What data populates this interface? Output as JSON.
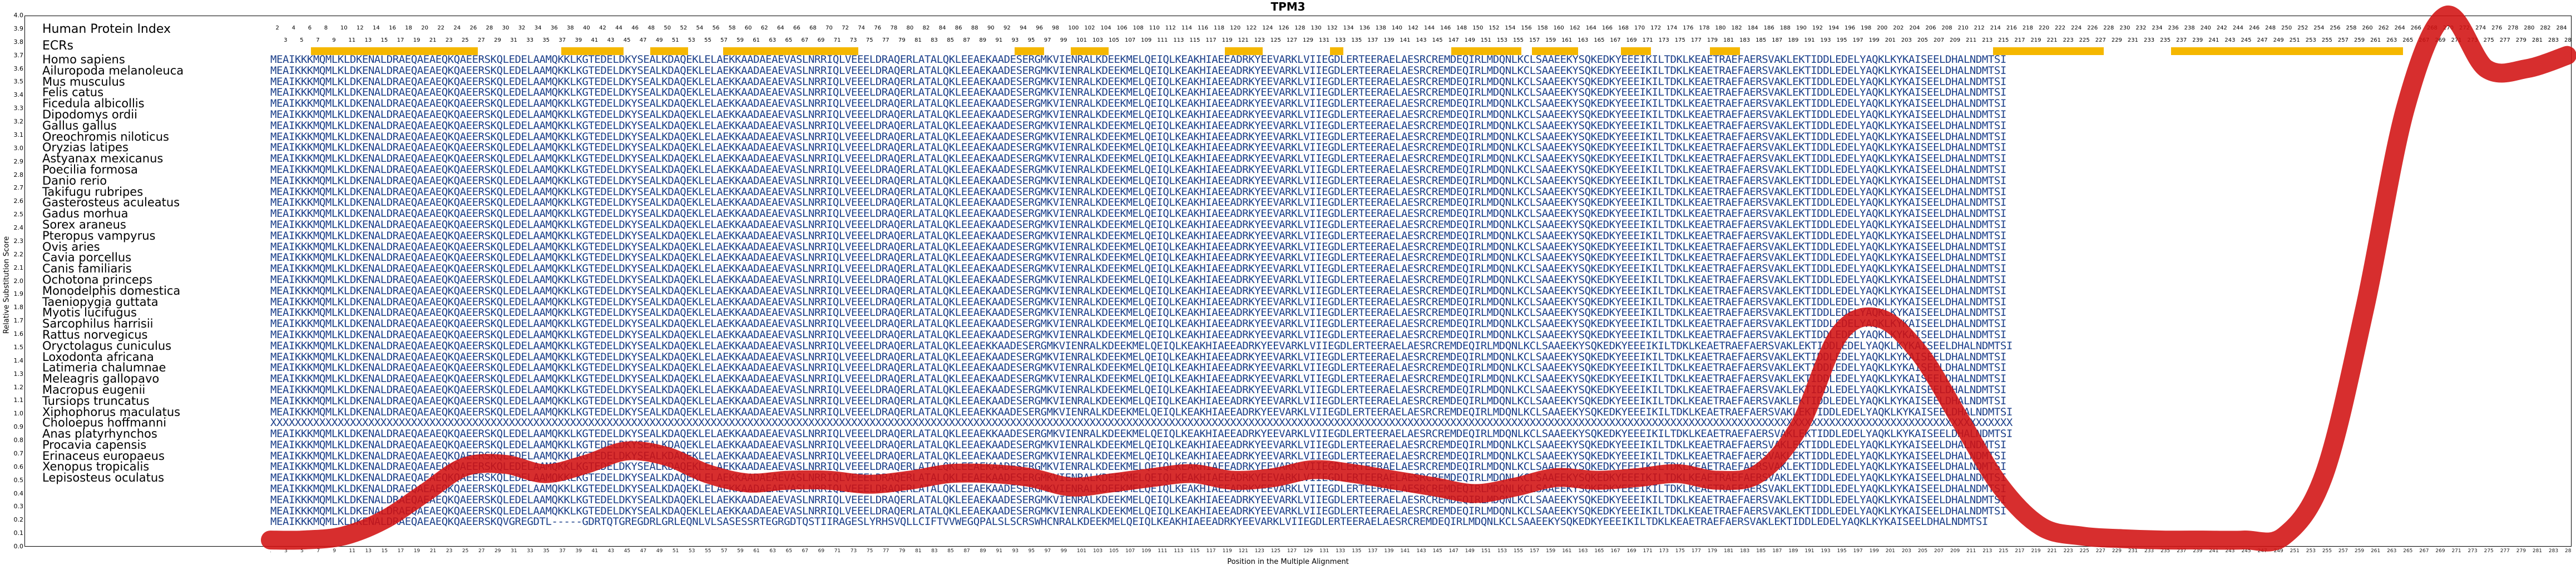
{
  "chart_data": {
    "type": "line",
    "title": "TPM3",
    "xlabel": "Position in the Multiple Alignment",
    "ylabel": "Relative Substitution Score",
    "ylim": [
      0,
      4.0
    ],
    "yticks": [
      "4.0",
      "3.9",
      "3.8",
      "3.7",
      "3.6",
      "3.5",
      "3.4",
      "3.3",
      "3.2",
      "3.1",
      "3.0",
      "2.9",
      "2.8",
      "2.7",
      "2.6",
      "2.5",
      "2.4",
      "2.3",
      "2.2",
      "2.1",
      "2.0",
      "1.9",
      "1.8",
      "1.7",
      "1.6",
      "1.5",
      "1.4",
      "1.3",
      "1.2",
      "1.1",
      "1.0",
      "0.9",
      "0.8",
      "0.7",
      "0.6",
      "0.5",
      "0.4",
      "0.3",
      "0.2",
      "0.1",
      "0.0"
    ],
    "xlim": [
      1,
      285
    ],
    "x_top_index_odd_start": 3,
    "x_top_index_even_start": 2,
    "header_labels": [
      "Human Protein Index",
      "ECRs"
    ],
    "ecr_ranges": [
      [
        6,
        26
      ],
      [
        37,
        44
      ],
      [
        48,
        52
      ],
      [
        57,
        73
      ],
      [
        93,
        96
      ],
      [
        100,
        104
      ],
      [
        119,
        123
      ],
      [
        132,
        133
      ],
      [
        147,
        155
      ],
      [
        157,
        162
      ],
      [
        168,
        171
      ],
      [
        179,
        182
      ],
      [
        214,
        227
      ],
      [
        236,
        264
      ]
    ],
    "species": [
      "Homo sapiens",
      "Ailuropoda melanoleuca",
      "Mus musculus",
      "Felis catus",
      "Ficedula albicollis",
      "Dipodomys ordii",
      "Gallus gallus",
      "Oreochromis niloticus",
      "Oryzias latipes",
      "Astyanax mexicanus",
      "Poecilia formosa",
      "Danio rerio",
      "Takifugu rubripes",
      "Gasterosteus aculeatus",
      "Gadus morhua",
      "Sorex araneus",
      "Pteropus vampyrus",
      "Ovis aries",
      "Cavia porcellus",
      "Canis familiaris",
      "Ochotona princeps",
      "Monodelphis domestica",
      "Taeniopygia guttata",
      "Myotis lucifugus",
      "Sarcophilus harrisii",
      "Rattus norvegicus",
      "Oryctolagus cuniculus",
      "Loxodonta africana",
      "Latimeria chalumnae",
      "Meleagris gallopavo",
      "Macropus eugenii",
      "Tursiops truncatus",
      "Xiphophorus maculatus",
      "Choloepus hoffmanni",
      "Anas platyrhynchos",
      "Procavia capensis",
      "Erinaceus europaeus",
      "Xenopus tropicalis",
      "Lepisosteus oculatus"
    ],
    "sequences": [
      "MEAIKKKMQMLKLDKENALDRAEQAEAEQKQAEERSKQLEDELAAMQKKLKGTEDELDKYSEALKDAQEKLELAEKKAADAEAEVASLNRRIQLVEEELDRAQERLATALQKLEEAEKAADESERGMKVIENRALKDEEKMELQEIQLKEAKHIAEEADRKYEEVARKLVIIEGDLERTEERAELAESRCREMDEQIRLMDQNLKCLSAAEEKYSQKEDKYEEEIKILTDKLKEAETRAEFAERSVAKLEKTIDDLEDELYAQKLKYKAISEELDHALNDMTSI",
      "MEAIKKKMQMLKLDKENALDRAEQAEAEQKQAEERSKQLEDELAAMQKKLKGTEDELDKYSEALKDAQEKLELAEKKAADAEAEVASLNRRIQLVEEELDRAQERLATALQKLEEAEKAADESERGMKVIENRALKDEEKMELQEIQLKEAKHIAEEADRKYEEVARKLVIIEGDLERTEERAELAESRCREMDEQIRLMDQNLKCLSAAEEKYSQKEDKYEEEIKILTDKLKEAETRAEFAERSVAKLEKTIDDLEDELYAQKLKYKAISEELDHALNDMTSI",
      "MEAIKKKMQMLKLDKENALDRAEQAEAEQKQAEERSKQLEDELAAMQKKLKGTEDELDKYSEALKDAQEKLELAEKKAADAEAEVASLNRRIQLVEEELDRAQERLATALQKLEEAEKAADESERGMKVIENRALKDEEKMELQEIQLKEAKHIAEEADRKYEEVARKLVIIEGDLERTEERAELAESRCREMDEQIRLMDQNLKCLSAAEEKYSQKEDKYEEEIKILTDKLKEAETRAEFAERSVAKLEKTIDDLEDELYAQKLKYKAISEELDHALNDMTSI",
      "MEAIKKKMQMLKLDKENALDRAEQAEAEQKQAEERSKQLEDELAAMQKKLKGTEDELDKYSEALKDAQEKLELAEKKAADAEAEVASLNRRIQLVEEELDRAQERLATALQKLEEAEKAADESERGMKVIENRALKDEEKMELQEIQLKEAKHIAEEADRKYEEVARKLVIIEGDLERTEERAELAESRCREMDEQIRLMDQNLKCLSAAEEKYSQKEDKYEEEIKILTDKLKEAETRAEFAERSVAKLEKTIDDLEDELYAQKLKYKAISEELDHALNDMTSI",
      "MEAIKKKMQMLKLDKENALDRAEQAEAEQKQAEERSKQLEDELAAMQKKLKGTEDELDKYSEALKDAQEKLELAEKKAADAEAEVASLNRRIQLVEEELDRAQERLATALQKLEEAEKAADESERGMKVIENRALKDEEKMELQEIQLKEAKHIAEEADRKYEEVARKLVIIEGDLERTEERAELAESRCREMDEQIRLMDQNLKCLSAAEEKYSQKEDKYEEEIKILTDKLKEAETRAEFAERSVAKLEKTIDDLEDELYAQKLKYKAISEELDHALNDMTSI",
      "MEAIKKKMQMLKLDKENALDRAEQAEAEQKQAEERSKQLEDELAAMQKKLKGTEDELDKYSEALKDAQEKLELAEKKAADAEAEVASLNRRIQLVEEELDRAQERLATALQKLEEAEKAADESERGMKVIENRALKDEEKMELQEIQLKEAKHIAEEADRKYEEVARKLVIIEGDLERTEERAELAESRCREMDEQIRLMDQNLKCLSAAEEKYSQKEDKYEEEIKILTDKLKEAETRAEFAERSVAKLEKTIDDLEDELYAQKLKYKAISEELDHALNDMTSI",
      "MEAIKKKMQMLKLDKENALDRAEQAEAEQKQAEERSKQLEDELAAMQKKLKGTEDELDKYSEALKDAQEKLELAEKKAADAEAEVASLNRRIQLVEEELDRAQERLATALQKLEEAEKAADESERGMKVIENRALKDEEKMELQEIQLKEAKHIAEEADRKYEEVARKLVIIEGDLERTEERAELAESRCREMDEQIRLMDQNLKCLSAAEEKYSQKEDKYEEEIKILTDKLKEAETRAEFAERSVAKLEKTIDDLEDELYAQKLKYKAISEELDHALNDMTSI",
      "MEAIKKKMQMLKLDKENALDRAEQAEAEQKQAEERSKQLEDELAAMQKKLKGTEDELDKYSEALKDAQEKLELAEKKAADAEAEVASLNRRIQLVEEELDRAQERLATALQKLEEAEKAADESERGMKVIENRALKDEEKMELQEIQLKEAKHIAEEADRKYEEVARKLVIIEGDLERTEERAELAESRCREMDEQIRLMDQNLKCLSAAEEKYSQKEDKYEEEIKILTDKLKEAETRAEFAERSVAKLEKTIDDLEDELYAQKLKYKAISEELDHALNDMTSI",
      "MEAIKKKMQMLKLDKENALDRAEQAEAEQKQAEERSKQLEDELAAMQKKLKGTEDELDKYSEALKDAQEKLELAEKKAADAEAEVASLNRRIQLVEEELDRAQERLATALQKLEEAEKAADESERGMKVIENRALKDEEKMELQEIQLKEAKHIAEEADRKYEEVARKLVIIEGDLERTEERAELAESRCREMDEQIRLMDQNLKCLSAAEEKYSQKEDKYEEEIKILTDKLKEAETRAEFAERSVAKLEKTIDDLEDELYAQKLKYKAISEELDHALNDMTSI",
      "MEAIKKKMQMLKLDKENALDRAEQAEAEQKQAEERSKQLEDELAAMQKKLKGTEDELDKYSEALKDAQEKLELAEKKAADAEAEVASLNRRIQLVEEELDRAQERLATALQKLEEAEKAADESERGMKVIENRALKDEEKMELQEIQLKEAKHIAEEADRKYEEVARKLVIIEGDLERTEERAELAESRCREMDEQIRLMDQNLKCLSAAEEKYSQKEDKYEEEIKILTDKLKEAETRAEFAERSVAKLEKTIDDLEDELYAQKLKYKAISEELDHALNDMTSI",
      "MEAIKKKMQMLKLDKENALDRAEQAEAEQKQAEERSKQLEDELAAMQKKLKGTEDELDKYSEALKDAQEKLELAEKKAADAEAEVASLNRRIQLVEEELDRAQERLATALQKLEEAEKAADESERGMKVIENRALKDEEKMELQEIQLKEAKHIAEEADRKYEEVARKLVIIEGDLERTEERAELAESRCREMDEQIRLMDQNLKCLSAAEEKYSQKEDKYEEEIKILTDKLKEAETRAEFAERSVAKLEKTIDDLEDELYAQKLKYKAISEELDHALNDMTSI",
      "MEAIKKKMQMLKLDKENALDRAEQAEAEQKQAEERSKQLEDELAAMQKKLKGTEDELDKYSEALKDAQEKLELAEKKAADAEAEVASLNRRIQLVEEELDRAQERLATALQKLEEAEKAADESERGMKVIENRALKDEEKMELQEIQLKEAKHIAEEADRKYEEVARKLVIIEGDLERTEERAELAESRCREMDEQIRLMDQNLKCLSAAEEKYSQKEDKYEEEIKILTDKLKEAETRAEFAERSVAKLEKTIDDLEDELYAQKLKYKAISEELDHALNDMTSI",
      "MEAIKKKMQMLKLDKENALDRAEQAEAEQKQAEERSKQLEDELAAMQKKLKGTEDELDKYSEALKDAQEKLELAEKKAADAEAEVASLNRRIQLVEEELDRAQERLATALQKLEEAEKAADESERGMKVIENRALKDEEKMELQEIQLKEAKHIAEEADRKYEEVARKLVIIEGDLERTEERAELAESRCREMDEQIRLMDQNLKCLSAAEEKYSQKEDKYEEEIKILTDKLKEAETRAEFAERSVAKLEKTIDDLEDELYAQKLKYKAISEELDHALNDMTSI",
      "MEAIKKKMQMLKLDKENALDRAEQAEAEQKQAEERSKQLEDELAAMQKKLKGTEDELDKYSEALKDAQEKLELAEKKAADAEAEVASLNRRIQLVEEELDRAQERLATALQKLEEAEKAADESERGMKVIENRALKDEEKMELQEIQLKEAKHIAEEADRKYEEVARKLVIIEGDLERTEERAELAESRCREMDEQIRLMDQNLKCLSAAEEKYSQKEDKYEEEIKILTDKLKEAETRAEFAERSVAKLEKTIDDLEDELYAQKLKYKAISEELDHALNDMTSI",
      "MEAIKKKMQMLKLDKENALDRAEQAEAEQKQAEERSKQLEDELAAMQKKLKGTEDELDKYSEALKDAQEKLELAEKKAADAEAEVASLNRRIQLVEEELDRAQERLATALQKLEEAEKAADESERGMKVIENRALKDEEKMELQEIQLKEAKHIAEEADRKYEEVARKLVIIEGDLERTEERAELAESRCREMDEQIRLMDQNLKCLSAAEEKYSQKEDKYEEEIKILTDKLKEAETRAEFAERSVAKLEKTIDDLEDELYAQKLKYKAISEELDHALNDMTSI",
      "MEAIKKKMQMLKLDKENALDRAEQAEAEQKQAEERSKQLEDELAAMQKKLKGTEDELDKYSEALKDAQEKLELAEKKAADAEAEVASLNRRIQLVEEELDRAQERLATALQKLEEAEKAADESERGMKVIENRALKDEEKMELQEIQLKEAKHIAEEADRKYEEVARKLVIIEGDLERTEERAELAESRCREMDEQIRLMDQNLKCLSAAEEKYSQKEDKYEEEIKILTDKLKEAETRAEFAERSVAKLEKTIDDLEDELYAQKLKYKAISEELDHALNDMTSI",
      "MEAIKKKMQMLKLDKENALDRAEQAEAEQKQAEERSKQLEDELAAMQKKLKGTEDELDKYSEALKDAQEKLELAEKKAADAEAEVASLNRRIQLVEEELDRAQERLATALQKLEEAEKAADESERGMKVIENRALKDEEKMELQEIQLKEAKHIAEEADRKYEEVARKLVIIEGDLERTEERAELAESRCREMDEQIRLMDQNLKCLSAAEEKYSQKEDKYEEEIKILTDKLKEAETRAEFAERSVAKLEKTIDDLEDELYAQKLKYKAISEELDHALNDMTSI",
      "MEAIKKKMQMLKLDKENALDRAEQAEAEQKQAEERSKQLEDELAAMQKKLKGTEDELDKYSEALKDAQEKLELAEKKAADAEAEVASLNRRIQLVEEELDRAQERLATALQKLEEAEKAADESERGMKVIENRALKDEEKMELQEIQLKEAKHIAEEADRKYEEVARKLVIIEGDLERTEERAELAESRCREMDEQIRLMDQNLKCLSAAEEKYSQKEDKYEEEIKILTDKLKEAETRAEFAERSVAKLEKTIDDLEDELYAQKLKYKAISEELDHALNDMTSI",
      "MEAIKKKMQMLKLDKENALDRAEQAEAEQKQAEERSKQLEDELAAMQKKLKGTEDELDKYSEALKDAQEKLELAEKKAADAEAEVASLNRRIQLVEEELDRAQERLATALQKLEEAEKAADESERGMKVIENRALKDEEKMELQEIQLKEAKHIAEEADRKYEEVARKLVIIEGDLERTEERAELAESRCREMDEQIRLMDQNLKCLSAAEEKYSQKEDKYEEEIKILTDKLKEAETRAEFAERSVAKLEKTIDDLEDELYAQKLKYKAISEELDHALNDMTSI",
      "MEAIKKKMQMLKLDKENALDRAEQAEAEQKQAEERSKQLEDELAAMQKKLKGTEDELDKYSEALKDAQEKLELAEKKAADAEAEVASLNRRIQLVEEELDRAQERLATALQKLEEAEKAADESERGMKVIENRALKDEEKMELQEIQLKEAKHIAEEADRKYEEVARKLVIIEGDLERTEERAELAESRCREMDEQIRLMDQNLKCLSAAEEKYSQKEDKYEEEIKILTDKLKEAETRAEFAERSVAKLEKTIDDLEDELYAQKLKYKAISEELDHALNDMTSI",
      "MEAIKKKMQMLKLDKENALDRAEQAEAEQKQAEERSKQLEDELAAMQKKLKGTEDELDKYSEALKDAQEKLELAEKKAADAEAEVASLNRRIQLVEEELDRAQERLATALQKLEEAEKAADESERGMKVIENRALKDEEKMELQEIQLKEAKHIAEEADRKYEEVARKLVIIEGDLERTEERAELAESRCREMDEQIRLMDQNLKCLSAAEEKYSQKEDKYEEEIKILTDKLKEAETRAEFAERSVAKLEKTIDDLEDELYAQKLKYKAISEELDHALNDMTSI",
      "MEAIKKKMQMLKLDKENALDRAEQAEAEQKQAEERSKQLEDELAAMQKKLKGTEDELDKYSEALKDAQEKLELAEKKAADAEAEVASLNRRIQLVEEELDRAQERLATALQKLEEAEKAADESERGMKVIENRALKDEEKMELQEIQLKEAKHIAEEADRKYEEVARKLVIIEGDLERTEERAELAESRCREMDEQIRLMDQNLKCLSAAEEKYSQKEDKYEEEIKILTDKLKEAETRAEFAERSVAKLEKTIDDLEDELYAQKLKYKAISEELDHALNDMTSI",
      "MEAIKKKMQMLKLDKENALDRAEQAEAEQKQAEERSKQLEDELAAMQKKLKGTEDELDKYSEALKDAQEKLELAEKKAADAEAEVASLNRRIQLVEEELDRAQERLATALQKLEEAEKAADESERGMKVIENRALKDEEKMELQEIQLKEAKHIAEEADRKYEEVARKLVIIEGDLERTEERAELAESRCREMDEQIRLMDQNLKCLSAAEEKYSQKEDKYEEEIKILTDKLKEAETRAEFAERSVAKLEKTIDDLEDELYAQKLKYKAISEELDHALNDMTSI",
      "MEAIKKKMQMLKLDKENALDRAEQAEAEQKQAEERSKQLEDELAAMQKKLKGTEDELDKYSEALKDAQEKLELAEKKAADAEAEVASLNRRIQLVEEELDRAQERLATALQKLEEAEKAADESERGMKVIENRALKDEEKMELQEIQLKEAKHIAEEADRKYEEVARKLVIIEGDLERTEERAELAESRCREMDEQIRLMDQNLKCLSAAEEKYSQKEDKYEEEIKILTDKLKEAETRAEFAERSVAKLEKTIDDLEDELYAQKLKYKAISEELDHALNDMTSI",
      "MEAIKKKMQMLKLDKENALDRAEQAEAEQKQAEERSKQLEDELAAMQKKLKGTEDELDKYSEALKDAQEKLELAEKKAADAEAEVASLNRRIQLVEEELDRAQERLATALQKLEEAEKAADESERGMKVIENRALKDEEKMELQEIQLKEAKHIAEEADRKYEEVARKLVIIEGDLERTEERAELAESRCREMDEQIRLMDQNLKCLSAAEEKYSQKEDKYEEEIKILTDKLKEAETRAEFAERSVAKLEKTIDDLEDELYAQKLKYKAISEELDHALNDMTSI",
      "MEAIKKKMQMLKLDKENALDRAEQAEAEQKQAEERSKQLEDELAAMQKKLKGTEDELDKYSEALKDAQEKLELAEKKAADAEAEVASLNRRIQLVEEELDRAQERLATALQKLEEAEKAADESERGMKVIENRALKDEEKMELQEIQLKEAKHIAEEADRKYEEVARKLVIIEGDLERTEERAELAESRCREMDEQIRLMDQNLKCLSAAEEKYSQKEDKYEEEIKILTDKLKEAETRAEFAERSVAKLEKTIDDLEDELYAQKLKYKAISEELDHALNDMTSI",
      "MEAIKKKMQMLKLDKENALDRAEQAEAEQKQAEERSKQLEDELAAMQKKLKGTEDELDKYSEALKDAQEKLELAEKKAADAEAEVASLNRRIQLVEEELDRAQERLATALQKLEEAEKKAADESERGMKVIENRALKDEEKMELQEIQLKEAKHIAEEADRKYEEVARKLVIIEGDLERTEERAELAESRCREMDEQIRLMDQNLKCLSAAEEKYSQKEDKYEEEIKILTDKLKEAETRAEFAERSVAKLEKTIDDLEDELYAQKLKYKAISEELDHALNDMTSI",
      "MEAIKKKMQMLKLDKENALDRAEQAEAEQKQAEERSKQLEDELAAMQKKLKGTEDELDKYSEALKDAQEKLELAEKKAADAEAEVASLNRRIQLVEEELDRAQERLATALQKLEEAEKAADESERGMKVIENRALKDEEKMELQEIQLKEAKHIAEEADRKYEEVARKLVIIEGDLERTEERAELAESRCREMDEQIRLMDQNLKCLSAAEEKYSQKEDKYEEEIKILTDKLKEAETRAEFAERSVAKLEKTIDDLEDELYAQKLKYKAISEELDHALNDMTSI",
      "MEAIKKKMQMLKLDKENALDRAEQAEAEQKQAEERSKQLEDELAAMQKKLKGTEDELDKYSEALKDAQEKLELAEKKAADAEAEVASLNRRIQLVEEELDRAQERLATALQKLEEAEKAADESERGMKVIENRALKDEEKMELQEIQLKEAKHIAEEADRKYEEVARKLVIIEGDLERTEERAELAESRCREMDEQIRLMDQNLKCLSAAEEKYSQKEDKYEEEIKILTDKLKEAETRAEFAERSVAKLEKTIDDLEDELYAQKLKYKAISEELDHALNDMTSI",
      "MEAIKKKMQMLKLDKENALDRAEQAEAEQKQAEERSKQLEDELAAMQKKLKGTEDELDKYSEALKDAQEKLELAEKKAADAEAEVASLNRRIQLVEEELDRAQERLATALQKLEEAEKAADESERGMKVIENRALKDEEKMELQEIQLKEAKHIAEEADRKYEEVARKLVIIEGDLERTEERAELAESRCREMDEQIRLMDQNLKCLSAAEEKYSQKEDKYEEEIKILTDKLKEAETRAEFAERSVAKLEKTIDDLEDELYAQKLKYKAISEELDHALNDMTSI",
      "MEAIKKKMQMLKLDKENALDRAEQAEAEQKQAEERSKQLEDELAAMQKKLKGTEDELDKYSEALKDAQEKLELAEKKAADAEAEVASLNRRIQLVEEELDRAQERLATALQKLEEAEKAADESERGMKVIENRALKDEEKMELQEIQLKEAKHIAEEADRKYEEVARKLVIIEGDLERTEERAELAESRCREMDEQIRLMDQNLKCLSAAEEKYSQKEDKYEEEIKILTDKLKEAETRAEFAERSVAKLEKTIDDLEDELYAQKLKYKAISEELDHALNDMTSI",
      "MEAIKKKMQMLKLDKENALDRAEQAEAEQKQAEERSKQLEDELAAMQKKLKGTEDELDKYSEALKDAQEKLELAEKKAADAEAEVASLNRRIQLVEEELDRAQERLATALQKLEEAEKAADESERGMKVIENRALKDEEKMELQEIQLKEAKHIAEEADRKYEEVARKLVIIEGDLERTEERAELAESRCREMDEQIRLMDQNLKCLSAAEEKYSQKEDKYEEEIKILTDKLKEAETRAEFAERSVAKLEKTIDDLEDELYAQKLKYKAISEELDHALNDMTSI",
      "MEAIKKKMQMLKLDKENALDRAEQAEAEQKQAEERSKQLEDELAAMQKKLKGTEDELDKYSEALKDAQEKLELAEKKAADAEAEVASLNRRIQLVEEELDRAQERLATALQKLEEAEKKAADESERGMKVIENRALKDEEKMELQEIQLKEAKHIAEEADRKYEEVARKLVIIEGDLERTEERAELAESRCREMDEQIRLMDQNLKCLSAAEEKYSQKEDKYEEEIKILTDKLKEAETRAEFAERSVAKLEKTIDDLEDELYAQKLKYKAISEELDHALNDMTSI",
      "XXXXXXXXXXXXXXXXXXXXXXXXXXXXXXXXXXXXXXXXXXXXXXXXXXXXXXXXXXXXXXXXXXXXXXXXXXXXXXXXXXXXXXXXXXXXXXXXXXXXXXXXXXXXXXXXXXXXXXXXXXXXXXXXXXXXXXXXXXXXXXXXXXXXXXXXXXXXXXXXXXXXXXXXXXXXXXXXXXXXXXXXXXXXXXXXXXXXXXXXXXXXXXXXXXXXXXXXXXXXXXXXXXXXXXXXXXXXXXXXXXXXXXXXXXXXXXXXXXXXXXXXXXXXXXXXXXXXXXXXXXXXX",
      "MEAIKKKMQMLKLDKENALDRAEQAEAEQKQAEERSKQLEDELAAMQKKLKGTEDELDKYSEALKDAQEKLELAEKKAADAEAEVASLNRRIQLVEEELDRAQERLATALQKLEEAEKKAADESERGMKVIENRALKDEEKMELQEIQLKEAKHIAEEADRKYEEVARKLVIIEGDLERTEERAELAESRCREMDEQIRLMDQNLKCLSAAEEKYSQKEDKYEEEIKILTDKLKEAETRAEFAERSVAKLEKTIDDLEDELYAQKLKYKAISEELDHALNDMTSI",
      "MEAIKKKMQMLKLDKENALDRAEQAEAEQKQAEERSKQLEDELAAMQKKLKGTEDELDKYSEALKDAQEKLELAEKKAADAEAEVASLNRRIQLVEEELDRAQERLATALQKLEEAEKAADESERGMKVIENRALKDEEKMELQEIQLKEAKHIAEEADRKYEEVARKLVIIEGDLERTEERAELAESRCREMDEQIRLMDQNLKCLSAAEEKYSQKEDKYEEEIKILTDKLKEAETRAEFAERSVAKLEKTIDDLEDELYAQKLKYKAISEELDHALNDMTSI",
      "MEAIKKKMQMLKLDKENALDRAEQAEAEQKQAEERSKQLEDELAAMQKKLKGTEDELDKYSEALKDAQEKLELAEKKAADAEAEVASLNRRIQLVEEELDRAQERLATALQKLEEAEKAADESERGMKVIENRALKDEEKMELQEIQLKEAKHIAEEADRKYEEVARKLVIIEGDLERTEERAELAESRCREMDEQIRLMDQNLKCLSAAEEKYSQKEDKYEEEIKILTDKLKEAETRAEFAERSVAKLEKTIDDLEDELYAQKLKYKAISEELDHALNDMTSI",
      "MEAIKKKMQMLKLDKENALDRAEQAEAEQKQAEERSKQLEDELAAMQKKLKGTEDELDKYSEALKDAQEKLELAEKKAADAEAEVASLNRRIQLVEEELDRAQERLATALQKLEEAEKAADESERGMKVIENRALKDEEKMELQEIQLKEAKHIAEEADRKYEEVARKLVIIEGDLERTEERAELAESRCREMDEQIRLMDQNLKCLSAAEEKYSQKEDKYEEEIKILTDKLKEAETRAEFAERSVAKLEKTIDDLEDELYAQKLKYKAISEELDHALNDMTSI",
      "MEAIKKKMQMLKLDKENALDRAEQAEAEQKQAEERSKQLEDELAAMQKKLKGTEDELDKYSEALKDAQEKLELAEKKAADAEAEVASLNRRIQLVEEELDRAQERLATALQKLEEAEKAADESERGMKVIENRALKDEEKMELQEIQLKEAKHIAEEADRKYEEVARKLVIIEGDLERTEERAELAESRCREMDEQIRLMDQNLKCLSAAEEKYSQKEDKYEEEIKILTDKLKEAETRAEFAERSVAKLEKTIDDLEDELYAQKLKYKAISEELDHALNDMTSI",
      "MEAIKKKMQMLKLDKENALDRAEQAEAEQKQAEERSKQLEDELAAMQKKLKGTEDELDKYSEALKDAQEKLELAEKKAADAEAEVASLNRRIQLVEEELDRAQERLATALQKLEEAEKAADESERGMKVIENRALKDEEKMELQEIQLKEAKHIAEEADRKYEEVARKLVIIEGDLERTEERAELAESRCREMDEQIRLMDQNLKCLSAAEEKYSQKEDKYEEEIKILTDKLKEAETRAEFAERSVAKLEKTIDDLEDELYAQKLKYKAISEELDHALNDMTSI",
      "MEAIKKKMQMLKLDKENALDRAEQAEAEQKQAEERSKQLEDELAAMQKKLKGTEDELDKYSEALKDAQEKLELAEKKAADAEAEVASLNRRIQLVEEELDRAQERLATALQKLEEAEKAADESERGMKVIENRALKDEEKMELQEIQLKEAKHIAEEADRKYEEVARKLVIIEGDLERTEERAELAESRCREMDEQIRLMDQNLKCLSAAEEKYSQKEDKYEEEIKILTDKLKEAETRAEFAERSVAKLEKTIDDLEDELYAQKLKYKAISEELDHALNDMTSI",
      "MEAIKKKMQMLKLDKENALDRAEQAEAEQKQAEERSKQLEDELAAMQKKLKGTEDELDKYSEALKDAQEKLELAEKKAADAEAEVASLNRRIQLVEEELDRAQERLATALQKLEEAEKAADESERGMKVIENRALKDEEKMELQEIQLKEAKHIAEEADRKYEEVARKLVIIEGDLERTEERAELAESRCREMDEQIRLMDQNLKCLSAAEEKYSQKEDKYEEEIKILTDKLKEAETRAEFAERSVAKLEKTIDDLEDELYAQKLKYKAISEELDHALNDMTSI"
    ],
    "last_sequence": "MEAIKKKMQMLKLDKENALDRAEQAEAEQKQAEERSKQVGREGDTL-----GDRTQTGREGDRLGRLEQNLVLSASESSRTEGRGDTQSTIIRAGESLYRHSVQLLCIFTVVWEGQPALSLSCRSWHCNRALKDEEKMELQEIQLKEAKHIAEEADRKYEEVARKLVIIEGDLERTEERAELAESRCREMDEQIRLMDQNLKCLSAAEEKYSQKEDKYEEEIKILTDKLKEAETRAEFAERSVAKLEKTIDDLEDELYAQKLKYKAISEELDHALNDMTSI",
    "series": [
      {
        "x": [
          1,
          5,
          10,
          15,
          20,
          25,
          30,
          35,
          40,
          45,
          50,
          55,
          60,
          65,
          70,
          75,
          80,
          85,
          90,
          95,
          100,
          105,
          110,
          115,
          120,
          125,
          130,
          135,
          140,
          145,
          150,
          155,
          160,
          165,
          170,
          175,
          180,
          185,
          190,
          195,
          200,
          205,
          210,
          215,
          220,
          225,
          230,
          235,
          240,
          245,
          250,
          255,
          260,
          265,
          270,
          275,
          280,
          285
        ],
        "values": [
          0.05,
          0.05,
          0.08,
          0.2,
          0.4,
          0.6,
          0.62,
          0.55,
          0.62,
          0.72,
          0.68,
          0.55,
          0.48,
          0.5,
          0.5,
          0.47,
          0.5,
          0.55,
          0.55,
          0.52,
          0.45,
          0.48,
          0.52,
          0.55,
          0.5,
          0.52,
          0.58,
          0.55,
          0.5,
          0.45,
          0.4,
          0.45,
          0.52,
          0.5,
          0.52,
          0.55,
          0.5,
          0.55,
          0.9,
          1.6,
          1.72,
          1.45,
          0.95,
          0.45,
          0.15,
          0.08,
          0.06,
          0.05,
          0.05,
          0.05,
          0.08,
          0.55,
          1.8,
          3.3,
          4.0,
          3.6,
          3.6,
          3.7
        ]
      }
    ],
    "colors": {
      "curve": "#d11111",
      "ecr": "#f5b700",
      "conserved_text": "#1b3f8a"
    }
  }
}
